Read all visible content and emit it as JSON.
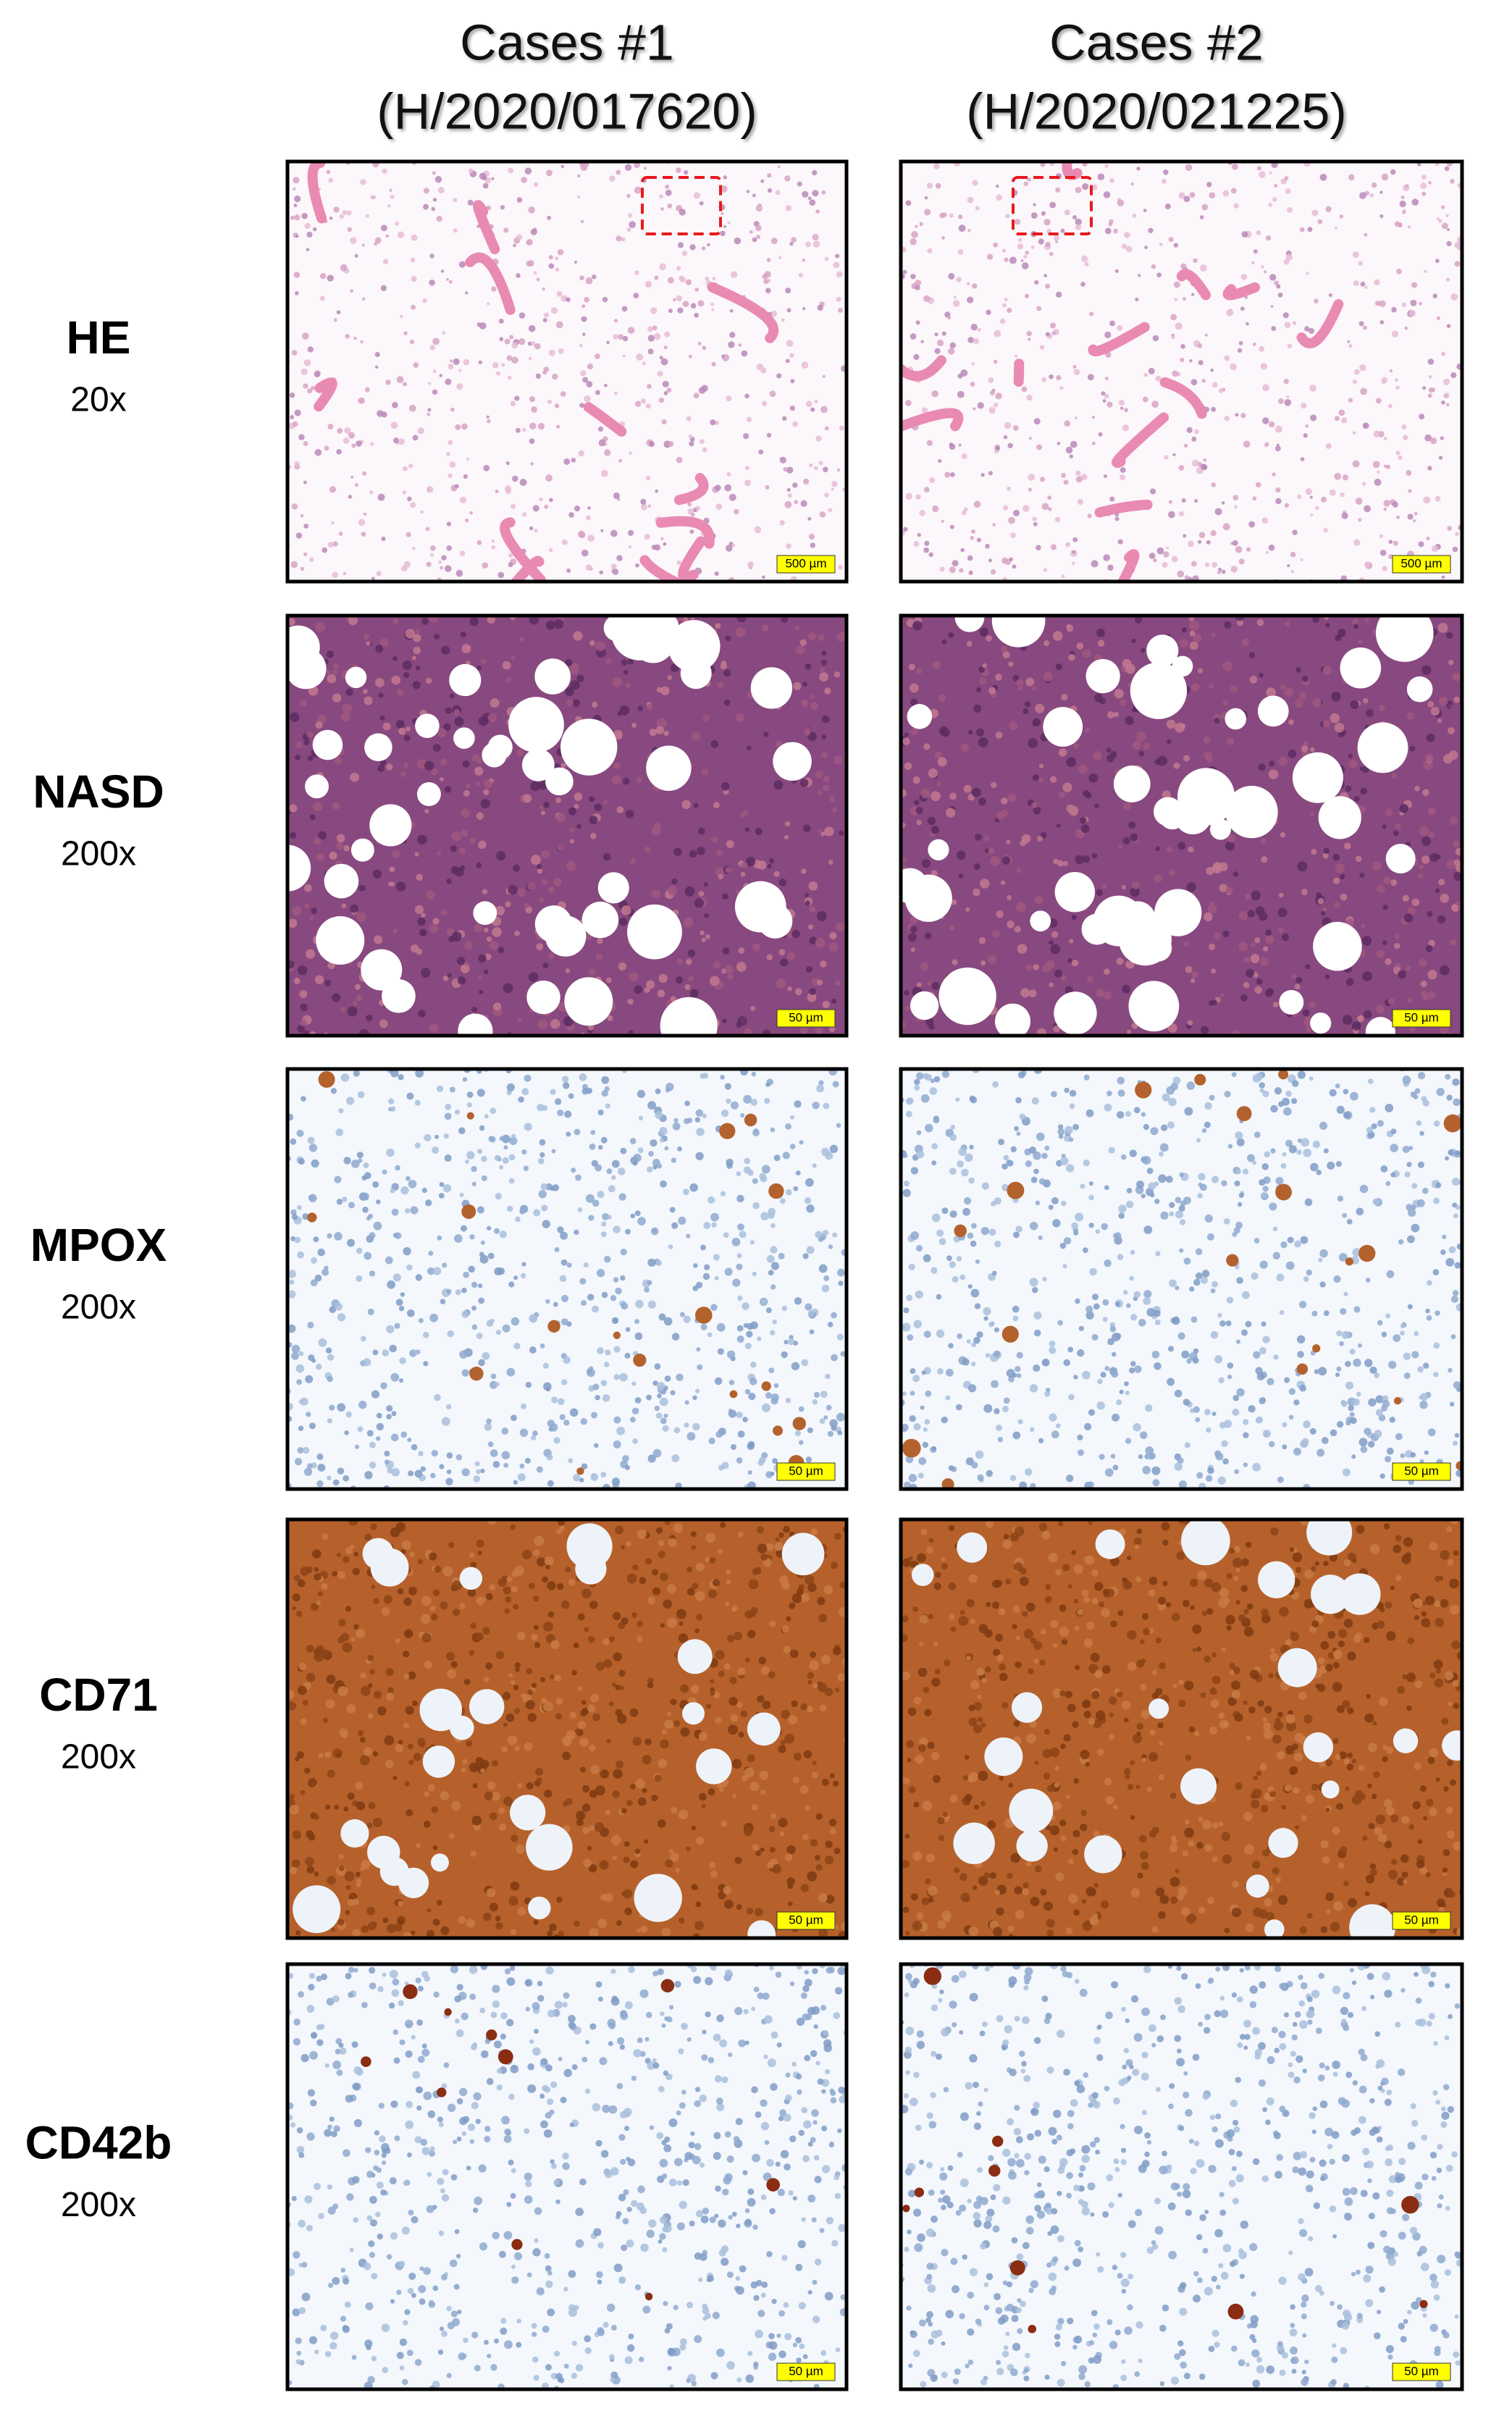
{
  "columns": [
    {
      "title": "Cases #1",
      "subtitle": "(H/2020/017620)"
    },
    {
      "title": "Cases #2",
      "subtitle": "(H/2020/021225)"
    }
  ],
  "rows": [
    {
      "stain": "HE",
      "magnification": "20x",
      "scale_bars": [
        "500 µm",
        "500 µm"
      ]
    },
    {
      "stain": "NASD",
      "magnification": "200x",
      "scale_bars": [
        "50 µm",
        "50 µm"
      ]
    },
    {
      "stain": "MPOX",
      "magnification": "200x",
      "scale_bars": [
        "50 µm",
        "50 µm"
      ]
    },
    {
      "stain": "CD71",
      "magnification": "200x",
      "scale_bars": [
        "50 µm",
        "50 µm"
      ]
    },
    {
      "stain": "CD42b",
      "magnification": "200x",
      "scale_bars": [
        "50 µm",
        "50 µm"
      ]
    }
  ]
}
